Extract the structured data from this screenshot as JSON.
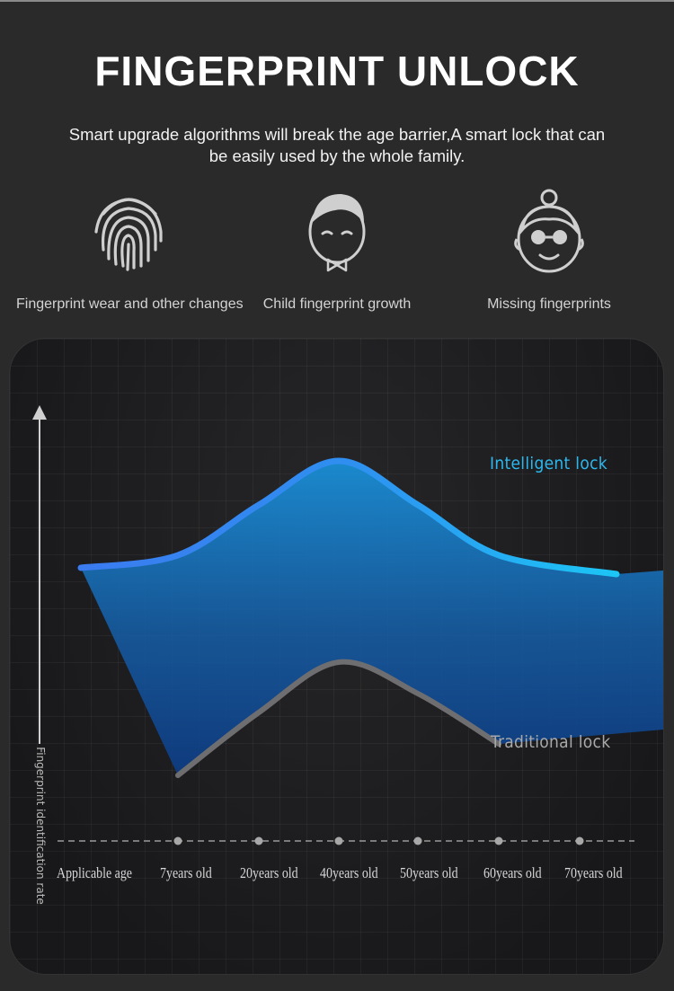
{
  "header": {
    "title": "FINGERPRINT UNLOCK",
    "subtitle_line1": "Smart upgrade algorithms will break the age barrier,A smart lock that can",
    "subtitle_line2": "be easily used by the whole family."
  },
  "features": [
    {
      "icon": "fingerprint-icon",
      "label": "Fingerprint  wear  and other changes"
    },
    {
      "icon": "child-face-icon",
      "label": "Child fingerprint growth"
    },
    {
      "icon": "elderly-face-icon",
      "label": "Missing fingerprints"
    }
  ],
  "chart_data": {
    "type": "area",
    "ylabel": "Fingerprint identification rate",
    "x_ticks": [
      "Applicable age",
      "7years old",
      "20years old",
      "40years old",
      "50years old",
      "60years old",
      "70years old"
    ],
    "series": [
      {
        "name": "Intelligent lock",
        "color": "#29b6f6",
        "x": [
          0,
          7,
          20,
          40,
          50,
          60,
          70
        ],
        "y": [
          0.78,
          0.8,
          0.88,
          0.95,
          0.88,
          0.8,
          0.77
        ]
      },
      {
        "name": "Traditional lock",
        "color": "#6b6b6b",
        "x": [
          7,
          20,
          40,
          50,
          60
        ],
        "y": [
          0.45,
          0.55,
          0.63,
          0.58,
          0.5
        ]
      }
    ],
    "ylim": [
      0,
      1
    ],
    "grid": true
  }
}
